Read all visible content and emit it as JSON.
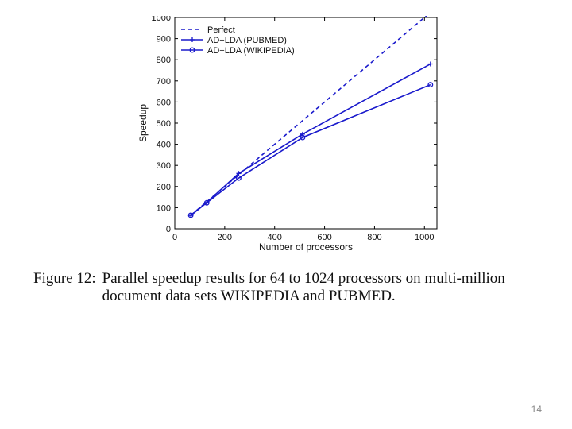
{
  "chart_data": {
    "type": "line",
    "xlabel": "Number of processors",
    "ylabel": "Speedup",
    "xlim": [
      0,
      1050
    ],
    "ylim": [
      0,
      1000
    ],
    "xticks": [
      0,
      200,
      400,
      600,
      800,
      1000
    ],
    "yticks": [
      0,
      100,
      200,
      300,
      400,
      500,
      600,
      700,
      800,
      900,
      1000
    ],
    "grid": false,
    "legend_position": "top-left",
    "series": [
      {
        "name": "Perfect",
        "x": [
          64,
          128,
          256,
          512,
          1024
        ],
        "y": [
          64,
          128,
          256,
          512,
          1024
        ],
        "style": "dashed",
        "marker": "none"
      },
      {
        "name": "AD−LDA (PUBMED)",
        "x": [
          64,
          128,
          256,
          512,
          1024
        ],
        "y": [
          63,
          125,
          262,
          448,
          780
        ],
        "style": "solid",
        "marker": "plus"
      },
      {
        "name": "AD−LDA (WIKIPEDIA)",
        "x": [
          64,
          128,
          256,
          512,
          1024
        ],
        "y": [
          64,
          123,
          240,
          432,
          682
        ],
        "style": "solid",
        "marker": "circle"
      }
    ]
  },
  "colors": {
    "line": "#1a1acc",
    "axis": "#000000"
  },
  "caption": {
    "label": "Figure 12:",
    "text": "Parallel speedup results for 64 to 1024 processors on multi-million document data sets WIKIPEDIA and PUBMED."
  },
  "page_number": "14"
}
